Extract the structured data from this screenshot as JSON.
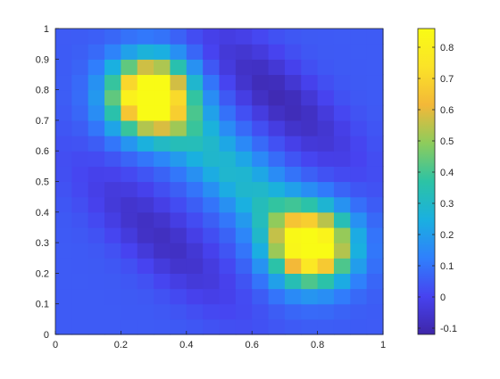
{
  "chart_data": {
    "type": "heatmap",
    "title": "",
    "xlabel": "",
    "ylabel": "",
    "xlim": [
      0,
      1
    ],
    "ylim": [
      0,
      1
    ],
    "grid": false,
    "x_ticks": [
      "0",
      "0.2",
      "0.4",
      "0.6",
      "0.8",
      "1"
    ],
    "y_ticks": [
      "0",
      "0.1",
      "0.2",
      "0.3",
      "0.4",
      "0.5",
      "0.6",
      "0.7",
      "0.8",
      "0.9",
      "1"
    ],
    "colorbar": {
      "placement": "right",
      "range": [
        -0.12,
        0.86
      ],
      "ticks": [
        "-0.1",
        "0",
        "0.1",
        "0.2",
        "0.3",
        "0.4",
        "0.5",
        "0.6",
        "0.7",
        "0.8"
      ],
      "colormap": [
        "#3e26a8",
        "#4743f0",
        "#2f80fc",
        "#1ab0e0",
        "#2cc3a5",
        "#8dcc5c",
        "#f3b838",
        "#fbe328",
        "#f9fb15"
      ]
    },
    "grid_size": 20,
    "features": [
      {
        "type": "peak",
        "x": 0.29,
        "y": 0.78,
        "value": 0.86,
        "note": "upper-left maximum"
      },
      {
        "type": "peak",
        "x": 0.78,
        "y": 0.29,
        "value": 0.8,
        "note": "lower-right maximum"
      },
      {
        "type": "ridge",
        "from": [
          0.29,
          0.78
        ],
        "to": [
          0.78,
          0.29
        ],
        "value": 0.45
      },
      {
        "type": "trough",
        "x": 0.68,
        "y": 0.78,
        "value": -0.1
      },
      {
        "type": "trough",
        "x": 0.32,
        "y": 0.32,
        "value": -0.08
      },
      {
        "type": "background",
        "value": 0.05
      }
    ]
  }
}
